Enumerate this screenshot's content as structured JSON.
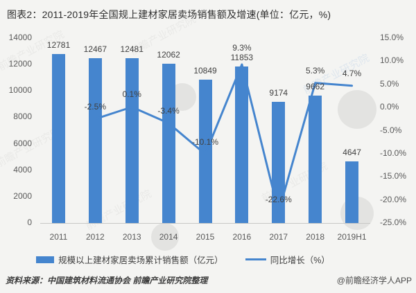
{
  "title": "图表2：2011-2019年全国规上建材家居卖场销售额及增速(单位：亿元，%)",
  "chart_data": {
    "type": "bar",
    "subtype": "bar-line-combo",
    "title": "图表2：2011-2019年全国规上建材家居卖场销售额及增速(单位：亿元，%)",
    "categories": [
      "2011",
      "2012",
      "2013",
      "2014",
      "2015",
      "2016",
      "2017",
      "2018",
      "2019H1"
    ],
    "series": [
      {
        "name": "规模以上建材家居卖场累计销售额（亿元）",
        "kind": "bar",
        "axis": "left",
        "values": [
          12781,
          12467,
          12481,
          12062,
          10849,
          11853,
          9174,
          9662,
          4647
        ],
        "labels": [
          "12781",
          "12467",
          "12481",
          "12062",
          "10849",
          "11853",
          "9174",
          "9662",
          "4647"
        ]
      },
      {
        "name": "同比增长（%）",
        "kind": "line",
        "axis": "right",
        "values": [
          null,
          -2.5,
          0.1,
          -3.4,
          -10.1,
          9.3,
          -22.6,
          5.3,
          4.7
        ],
        "labels": [
          "",
          "-2.5%",
          "0.1%",
          "-3.4%",
          "-10.1%",
          "9.3%",
          "-22.6%",
          "5.3%",
          "4.7%"
        ]
      }
    ],
    "left_axis": {
      "min": 0,
      "max": 14000,
      "step": 2000,
      "ticks": [
        "14000",
        "12000",
        "10000",
        "8000",
        "6000",
        "4000",
        "2000",
        "0"
      ]
    },
    "right_axis": {
      "min": -25,
      "max": 15,
      "step": 5,
      "ticks": [
        "15.0%",
        "10.0%",
        "5.0%",
        "0.0%",
        "-5.0%",
        "-10.0%",
        "-15.0%",
        "-20.0%",
        "-25.0%"
      ]
    },
    "grid": false,
    "legend_position": "bottom"
  },
  "legend": {
    "bar_label": "规模以上建材家居卖场累计销售额（亿元）",
    "line_label": "同比增长（%）"
  },
  "footer": {
    "source": "资料来源：中国建筑材料流通协会 前瞻产业研究院整理",
    "credit": "@前瞻经济学人APP"
  },
  "watermark": {
    "text": "前瞻产业研究院"
  },
  "colors": {
    "bar": "#4585CE",
    "line": "#4585CE",
    "title_text": "#2F2F2F",
    "data_label": "#3F3F3F",
    "axis_label": "#595959",
    "axis_line": "#C8C8C6",
    "background": "#F4F4F2"
  }
}
